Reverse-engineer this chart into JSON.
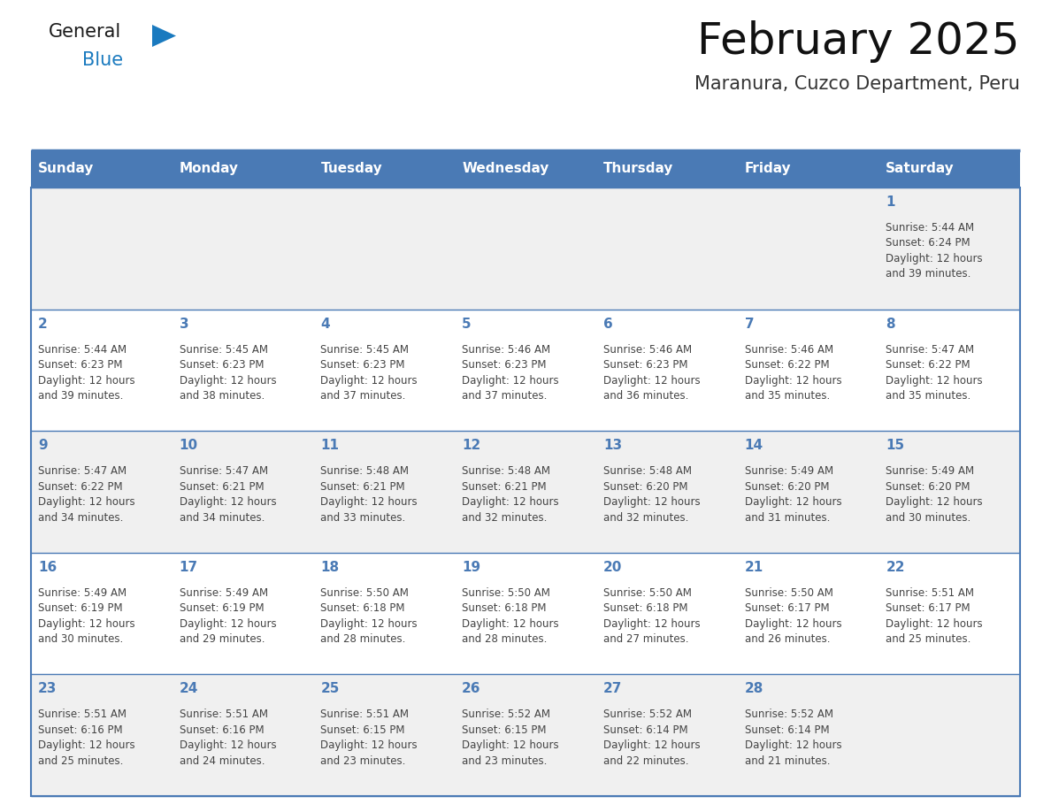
{
  "title": "February 2025",
  "subtitle": "Maranura, Cuzco Department, Peru",
  "header_bg": "#4a7ab5",
  "header_text_color": "#ffffff",
  "cell_bg_odd": "#f0f0f0",
  "cell_bg_even": "#ffffff",
  "day_number_color": "#4a7ab5",
  "info_text_color": "#444444",
  "border_color": "#4a7ab5",
  "line_color": "#4a7ab5",
  "days_of_week": [
    "Sunday",
    "Monday",
    "Tuesday",
    "Wednesday",
    "Thursday",
    "Friday",
    "Saturday"
  ],
  "calendar_data": [
    [
      null,
      null,
      null,
      null,
      null,
      null,
      {
        "day": 1,
        "sunrise": "5:44 AM",
        "sunset": "6:24 PM",
        "daylight": "12 hours",
        "daylight2": "and 39 minutes."
      }
    ],
    [
      {
        "day": 2,
        "sunrise": "5:44 AM",
        "sunset": "6:23 PM",
        "daylight": "12 hours",
        "daylight2": "and 39 minutes."
      },
      {
        "day": 3,
        "sunrise": "5:45 AM",
        "sunset": "6:23 PM",
        "daylight": "12 hours",
        "daylight2": "and 38 minutes."
      },
      {
        "day": 4,
        "sunrise": "5:45 AM",
        "sunset": "6:23 PM",
        "daylight": "12 hours",
        "daylight2": "and 37 minutes."
      },
      {
        "day": 5,
        "sunrise": "5:46 AM",
        "sunset": "6:23 PM",
        "daylight": "12 hours",
        "daylight2": "and 37 minutes."
      },
      {
        "day": 6,
        "sunrise": "5:46 AM",
        "sunset": "6:23 PM",
        "daylight": "12 hours",
        "daylight2": "and 36 minutes."
      },
      {
        "day": 7,
        "sunrise": "5:46 AM",
        "sunset": "6:22 PM",
        "daylight": "12 hours",
        "daylight2": "and 35 minutes."
      },
      {
        "day": 8,
        "sunrise": "5:47 AM",
        "sunset": "6:22 PM",
        "daylight": "12 hours",
        "daylight2": "and 35 minutes."
      }
    ],
    [
      {
        "day": 9,
        "sunrise": "5:47 AM",
        "sunset": "6:22 PM",
        "daylight": "12 hours",
        "daylight2": "and 34 minutes."
      },
      {
        "day": 10,
        "sunrise": "5:47 AM",
        "sunset": "6:21 PM",
        "daylight": "12 hours",
        "daylight2": "and 34 minutes."
      },
      {
        "day": 11,
        "sunrise": "5:48 AM",
        "sunset": "6:21 PM",
        "daylight": "12 hours",
        "daylight2": "and 33 minutes."
      },
      {
        "day": 12,
        "sunrise": "5:48 AM",
        "sunset": "6:21 PM",
        "daylight": "12 hours",
        "daylight2": "and 32 minutes."
      },
      {
        "day": 13,
        "sunrise": "5:48 AM",
        "sunset": "6:20 PM",
        "daylight": "12 hours",
        "daylight2": "and 32 minutes."
      },
      {
        "day": 14,
        "sunrise": "5:49 AM",
        "sunset": "6:20 PM",
        "daylight": "12 hours",
        "daylight2": "and 31 minutes."
      },
      {
        "day": 15,
        "sunrise": "5:49 AM",
        "sunset": "6:20 PM",
        "daylight": "12 hours",
        "daylight2": "and 30 minutes."
      }
    ],
    [
      {
        "day": 16,
        "sunrise": "5:49 AM",
        "sunset": "6:19 PM",
        "daylight": "12 hours",
        "daylight2": "and 30 minutes."
      },
      {
        "day": 17,
        "sunrise": "5:49 AM",
        "sunset": "6:19 PM",
        "daylight": "12 hours",
        "daylight2": "and 29 minutes."
      },
      {
        "day": 18,
        "sunrise": "5:50 AM",
        "sunset": "6:18 PM",
        "daylight": "12 hours",
        "daylight2": "and 28 minutes."
      },
      {
        "day": 19,
        "sunrise": "5:50 AM",
        "sunset": "6:18 PM",
        "daylight": "12 hours",
        "daylight2": "and 28 minutes."
      },
      {
        "day": 20,
        "sunrise": "5:50 AM",
        "sunset": "6:18 PM",
        "daylight": "12 hours",
        "daylight2": "and 27 minutes."
      },
      {
        "day": 21,
        "sunrise": "5:50 AM",
        "sunset": "6:17 PM",
        "daylight": "12 hours",
        "daylight2": "and 26 minutes."
      },
      {
        "day": 22,
        "sunrise": "5:51 AM",
        "sunset": "6:17 PM",
        "daylight": "12 hours",
        "daylight2": "and 25 minutes."
      }
    ],
    [
      {
        "day": 23,
        "sunrise": "5:51 AM",
        "sunset": "6:16 PM",
        "daylight": "12 hours",
        "daylight2": "and 25 minutes."
      },
      {
        "day": 24,
        "sunrise": "5:51 AM",
        "sunset": "6:16 PM",
        "daylight": "12 hours",
        "daylight2": "and 24 minutes."
      },
      {
        "day": 25,
        "sunrise": "5:51 AM",
        "sunset": "6:15 PM",
        "daylight": "12 hours",
        "daylight2": "and 23 minutes."
      },
      {
        "day": 26,
        "sunrise": "5:52 AM",
        "sunset": "6:15 PM",
        "daylight": "12 hours",
        "daylight2": "and 23 minutes."
      },
      {
        "day": 27,
        "sunrise": "5:52 AM",
        "sunset": "6:14 PM",
        "daylight": "12 hours",
        "daylight2": "and 22 minutes."
      },
      {
        "day": 28,
        "sunrise": "5:52 AM",
        "sunset": "6:14 PM",
        "daylight": "12 hours",
        "daylight2": "and 21 minutes."
      },
      null
    ]
  ],
  "logo_color_general": "#1a1a1a",
  "logo_color_blue": "#1a7abf",
  "logo_triangle_color": "#1a7abf",
  "title_fontsize": 36,
  "subtitle_fontsize": 15,
  "dow_fontsize": 11,
  "day_num_fontsize": 11,
  "info_fontsize": 8.5
}
